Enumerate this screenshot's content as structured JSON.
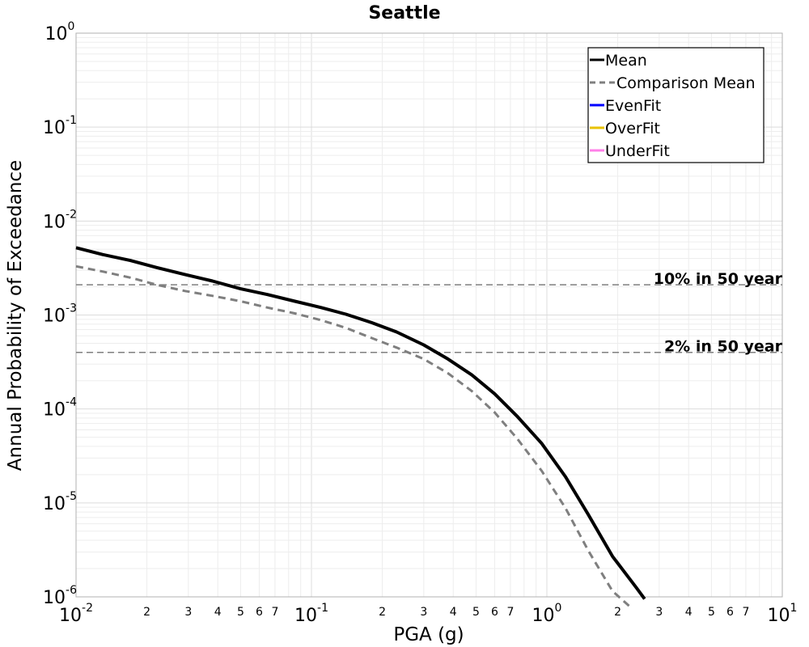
{
  "chart_data": {
    "type": "line",
    "title": "Seattle",
    "xlabel": "PGA (g)",
    "ylabel": "Annual Probability of Exceedance",
    "x_scale": "log",
    "y_scale": "log",
    "xlim": [
      0.01,
      10
    ],
    "ylim": [
      1e-06,
      1
    ],
    "grid": true,
    "legend_position": "top-right",
    "x_major_ticks": [
      {
        "base": "10",
        "exp": "-2"
      },
      {
        "base": "10",
        "exp": "-1"
      },
      {
        "base": "10",
        "exp": "0"
      },
      {
        "base": "10",
        "exp": "1"
      }
    ],
    "x_minor_tick_labels": [
      "2",
      "3",
      "4",
      "5",
      "6",
      "7"
    ],
    "y_major_ticks": [
      {
        "base": "10",
        "exp": "0"
      },
      {
        "base": "10",
        "exp": "-1"
      },
      {
        "base": "10",
        "exp": "-2"
      },
      {
        "base": "10",
        "exp": "-3"
      },
      {
        "base": "10",
        "exp": "-4"
      },
      {
        "base": "10",
        "exp": "-5"
      },
      {
        "base": "10",
        "exp": "-6"
      }
    ],
    "reference_lines": [
      {
        "label": "10% in 50 year",
        "y": 0.0021
      },
      {
        "label": "2% in 50 year",
        "y": 0.0004
      }
    ],
    "series": [
      {
        "name": "Mean",
        "color": "#000000",
        "style": "solid",
        "x": [
          0.01,
          0.013,
          0.017,
          0.022,
          0.029,
          0.038,
          0.05,
          0.065,
          0.085,
          0.11,
          0.14,
          0.18,
          0.23,
          0.3,
          0.38,
          0.48,
          0.6,
          0.75,
          0.95,
          1.2,
          1.5,
          1.9,
          2.4,
          2.6
        ],
        "y": [
          0.0052,
          0.0044,
          0.0038,
          0.0032,
          0.0027,
          0.0023,
          0.0019,
          0.00165,
          0.0014,
          0.0012,
          0.00102,
          0.00083,
          0.00066,
          0.00048,
          0.00034,
          0.00023,
          0.000145,
          8.3e-05,
          4.3e-05,
          1.9e-05,
          7.5e-06,
          2.7e-06,
          1.25e-06,
          9.5e-07
        ]
      },
      {
        "name": "Comparison Mean",
        "color": "#7f7f7f",
        "style": "dashed",
        "x": [
          0.01,
          0.013,
          0.017,
          0.022,
          0.029,
          0.038,
          0.05,
          0.065,
          0.085,
          0.11,
          0.14,
          0.18,
          0.23,
          0.3,
          0.38,
          0.48,
          0.6,
          0.75,
          0.95,
          1.2,
          1.5,
          1.9,
          2.3
        ],
        "y": [
          0.0033,
          0.0029,
          0.0025,
          0.0021,
          0.0018,
          0.0016,
          0.0014,
          0.0012,
          0.00104,
          0.00088,
          0.00073,
          0.00057,
          0.00045,
          0.00034,
          0.00024,
          0.000155,
          9.2e-05,
          4.8e-05,
          2.2e-05,
          8.8e-06,
          3.1e-06,
          1.15e-06,
          7.5e-07
        ]
      },
      {
        "name": "EvenFit",
        "color": "#0000ff",
        "style": "solid",
        "x": [],
        "y": []
      },
      {
        "name": "OverFit",
        "color": "#e8c200",
        "style": "solid",
        "x": [],
        "y": []
      },
      {
        "name": "UnderFit",
        "color": "#ff80e8",
        "style": "solid",
        "x": [],
        "y": []
      }
    ]
  }
}
